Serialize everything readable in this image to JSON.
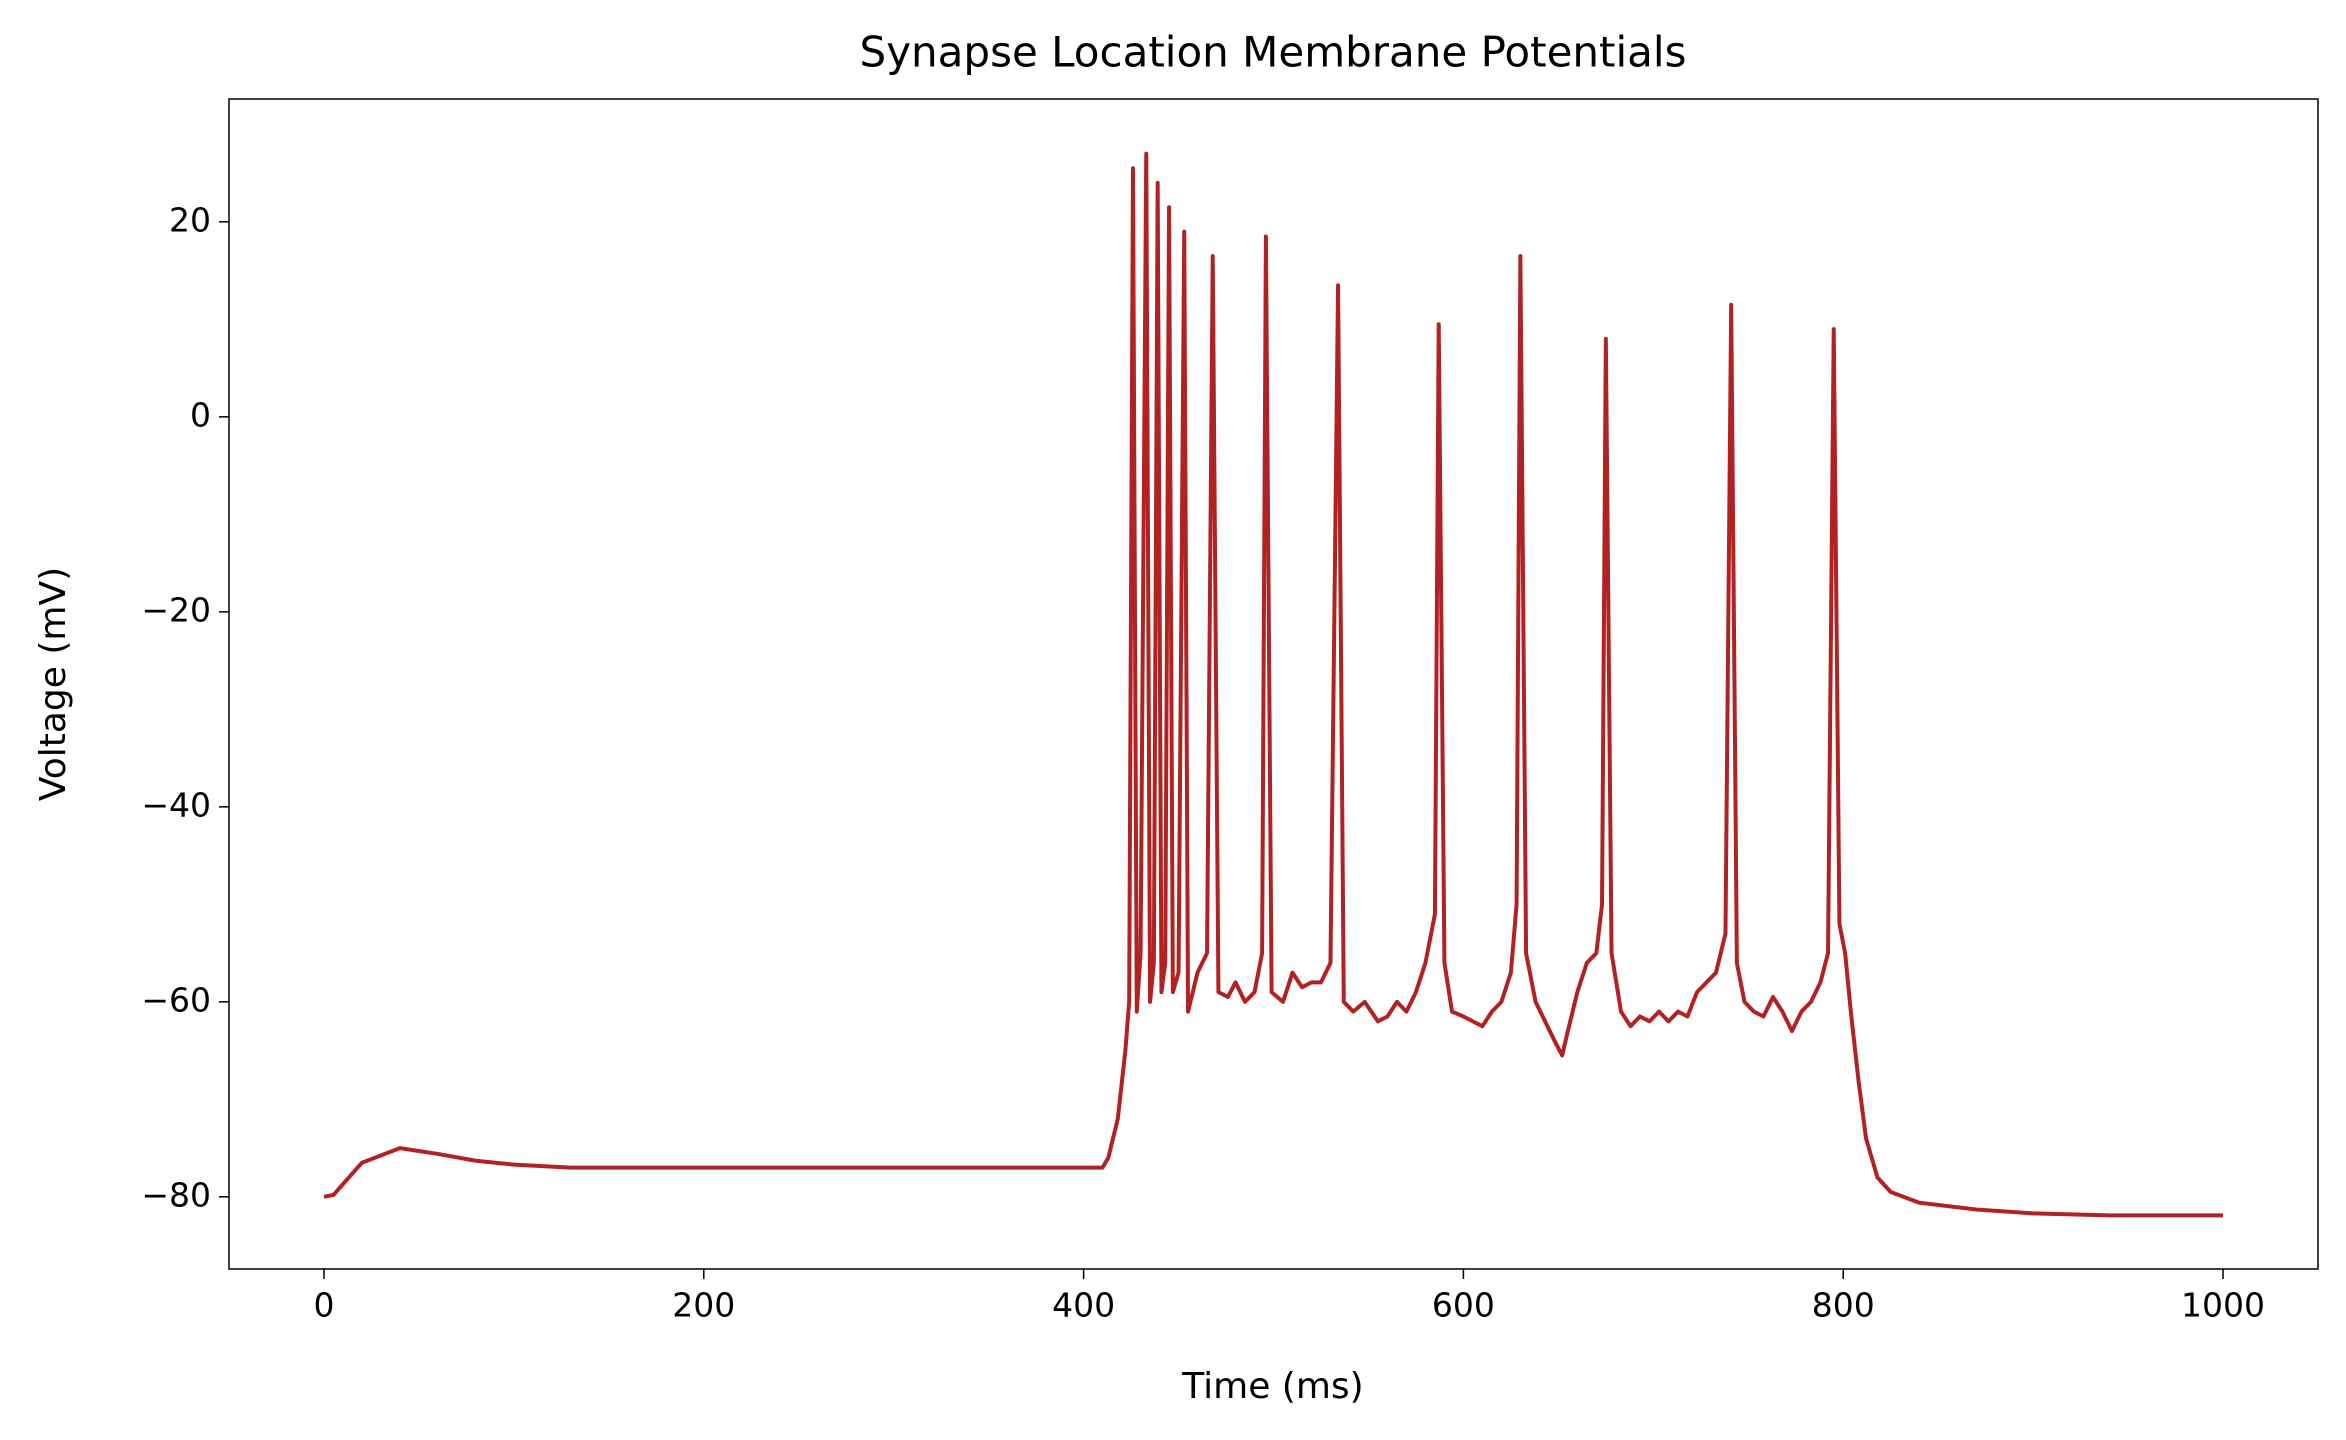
{
  "chart_data": {
    "type": "line",
    "title": "Synapse Location Membrane Potentials",
    "x_label": "Time (ms)",
    "y_label": "Voltage (mV)",
    "color": "#b22222",
    "x": [
      0,
      5,
      20,
      40,
      60,
      80,
      100,
      130,
      410,
      413,
      418,
      422,
      424,
      426,
      428,
      430,
      433,
      435,
      437,
      439,
      441,
      443,
      445,
      447,
      450,
      453,
      455,
      460,
      465,
      468,
      471,
      476,
      480,
      485,
      490,
      494,
      496,
      499,
      505,
      510,
      515,
      520,
      525,
      530,
      534,
      537,
      542,
      548,
      555,
      560,
      565,
      570,
      575,
      580,
      585,
      587,
      590,
      594,
      600,
      605,
      610,
      615,
      620,
      625,
      628,
      630,
      633,
      638,
      643,
      648,
      652,
      655,
      660,
      665,
      670,
      673,
      675,
      678,
      683,
      688,
      693,
      698,
      703,
      708,
      713,
      718,
      723,
      728,
      733,
      738,
      741,
      744,
      748,
      753,
      758,
      763,
      768,
      773,
      778,
      783,
      788,
      792,
      795,
      798,
      801,
      804,
      808,
      812,
      818,
      825,
      840,
      870,
      900,
      940,
      1000
    ],
    "values": [
      -80,
      -79.8,
      -76.5,
      -75,
      -75.6,
      -76.3,
      -76.7,
      -77,
      -77,
      -76,
      -72,
      -65,
      -60,
      25.5,
      -61,
      -55,
      27,
      -60,
      -56,
      24,
      -59,
      -56,
      21.5,
      -59,
      -57,
      19,
      -61,
      -57,
      -55,
      16.5,
      -59,
      -59.5,
      -58,
      -60,
      -59,
      -55,
      18.5,
      -59,
      -60,
      -57,
      -58.5,
      -58,
      -58,
      -56,
      13.5,
      -60,
      -61,
      -60,
      -62,
      -61.5,
      -60,
      -61,
      -59,
      -56,
      -51,
      9.5,
      -56,
      -61,
      -61.5,
      -62,
      -62.5,
      -61,
      -60,
      -57,
      -50,
      16.5,
      -55,
      -60,
      -62,
      -64,
      -65.5,
      -63,
      -59,
      -56,
      -55,
      -50,
      8,
      -55,
      -61,
      -62.5,
      -61.5,
      -62,
      -61,
      -62,
      -61,
      -61.5,
      -59,
      -58,
      -57,
      -53,
      11.5,
      -56,
      -60,
      -61,
      -61.5,
      -59.5,
      -61,
      -63,
      -61,
      -60,
      -58,
      -55,
      9,
      -52,
      -55,
      -61,
      -68,
      -74,
      -78,
      -79.5,
      -80.6,
      -81.3,
      -81.7,
      -81.9,
      -81.9
    ],
    "xlim": [
      -50,
      1050
    ],
    "xticks": [
      0,
      200,
      400,
      600,
      800,
      1000
    ],
    "ylim": [
      -87.4,
      32.6
    ],
    "yticks": [
      {
        "value": -80,
        "label": "−80"
      },
      {
        "value": -60,
        "label": "−60"
      },
      {
        "value": -40,
        "label": "−40"
      },
      {
        "value": -20,
        "label": "−20"
      },
      0,
      20
    ]
  }
}
